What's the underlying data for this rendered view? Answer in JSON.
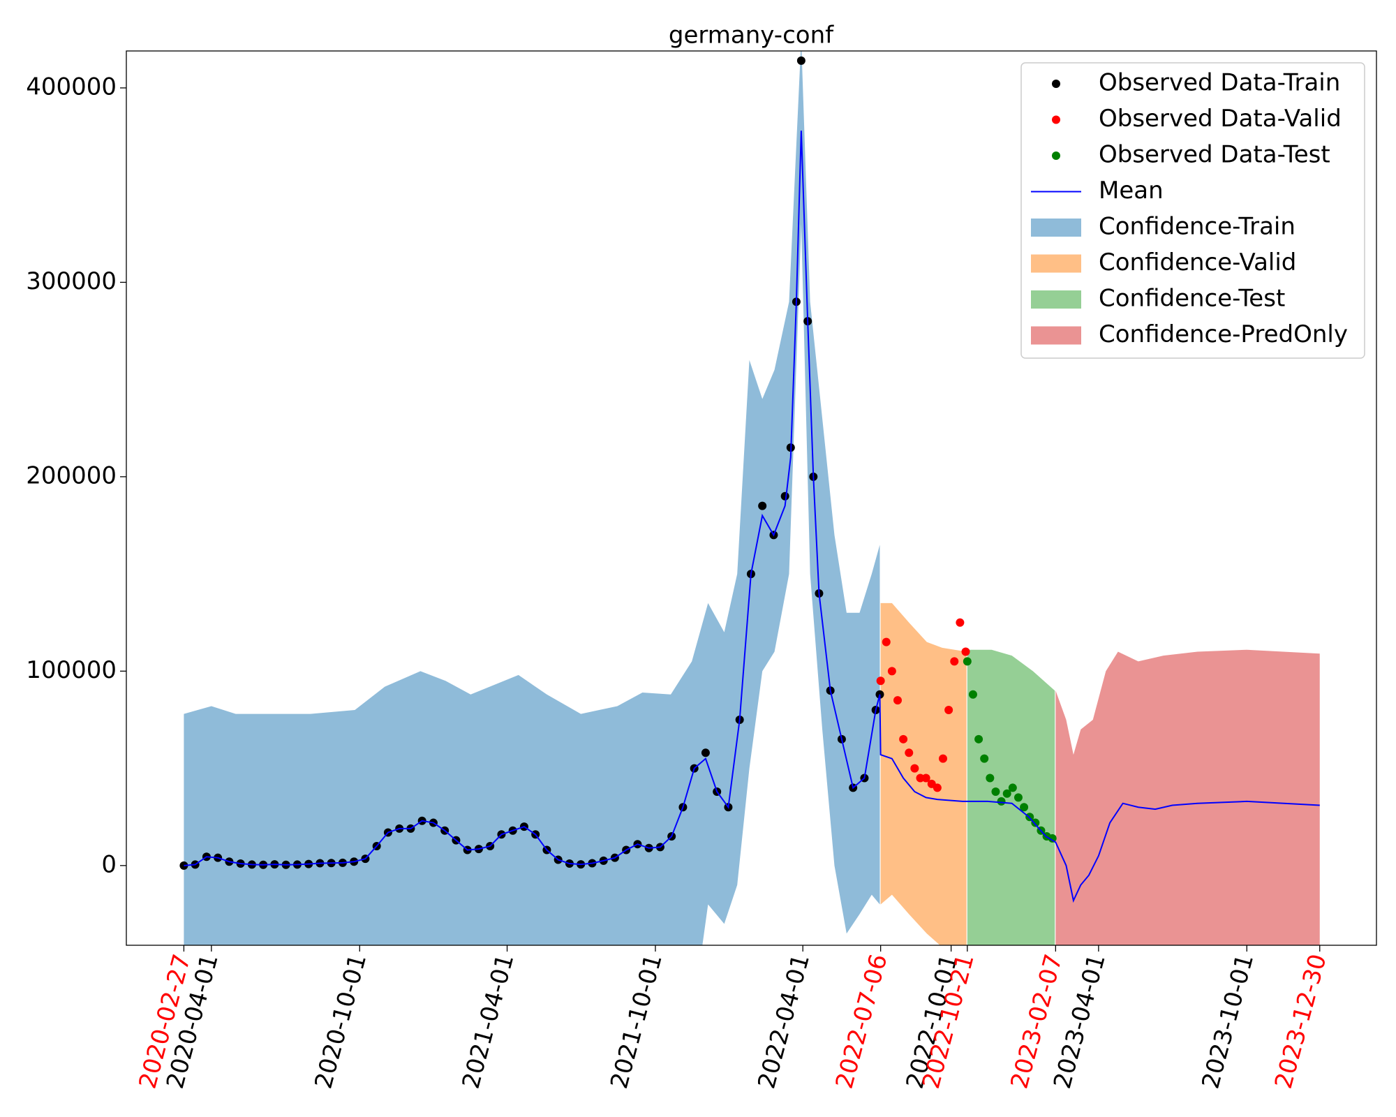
{
  "chart_data": {
    "type": "line",
    "title": "germany-conf",
    "xlim": [
      "2019-12-18",
      "2024-03-09"
    ],
    "xticks": [
      "2020-02-27",
      "2020-04-01",
      "2020-10-01",
      "2021-04-01",
      "2021-10-01",
      "2022-04-01",
      "2022-07-06",
      "2022-10-01",
      "2022-10-21",
      "2023-02-07",
      "2023-04-01",
      "2023-10-01",
      "2023-12-30"
    ],
    "xtick_colors": [
      "red",
      "black",
      "black",
      "black",
      "black",
      "black",
      "red",
      "black",
      "red",
      "red",
      "black",
      "black",
      "red"
    ],
    "ylim": [
      -41000,
      419000
    ],
    "yticks": [
      0,
      100000,
      200000,
      300000,
      400000
    ],
    "legend": "upper right",
    "series": [
      {
        "name": "Observed Data-Train",
        "kind": "scatter",
        "color": "black",
        "x": [
          "2020-02-27",
          "2020-03-12",
          "2020-03-26",
          "2020-04-09",
          "2020-04-23",
          "2020-05-07",
          "2020-05-21",
          "2020-06-04",
          "2020-06-18",
          "2020-07-02",
          "2020-07-16",
          "2020-07-30",
          "2020-08-13",
          "2020-08-27",
          "2020-09-10",
          "2020-09-24",
          "2020-10-08",
          "2020-10-22",
          "2020-11-05",
          "2020-11-19",
          "2020-12-03",
          "2020-12-17",
          "2020-12-31",
          "2021-01-14",
          "2021-01-28",
          "2021-02-11",
          "2021-02-25",
          "2021-03-11",
          "2021-03-25",
          "2021-04-08",
          "2021-04-22",
          "2021-05-06",
          "2021-05-20",
          "2021-06-03",
          "2021-06-17",
          "2021-07-01",
          "2021-07-15",
          "2021-07-29",
          "2021-08-12",
          "2021-08-26",
          "2021-09-09",
          "2021-09-23",
          "2021-10-07",
          "2021-10-21",
          "2021-11-04",
          "2021-11-18",
          "2021-12-02",
          "2021-12-16",
          "2021-12-30",
          "2022-01-13",
          "2022-01-27",
          "2022-02-10",
          "2022-02-24",
          "2022-03-10",
          "2022-03-17",
          "2022-03-24",
          "2022-03-30",
          "2022-04-07",
          "2022-04-14",
          "2022-04-21",
          "2022-05-05",
          "2022-05-19",
          "2022-06-02",
          "2022-06-16",
          "2022-06-30",
          "2022-07-05"
        ],
        "values": [
          0,
          500,
          4500,
          4000,
          2000,
          1000,
          500,
          400,
          600,
          400,
          500,
          800,
          1200,
          1300,
          1400,
          2000,
          3500,
          10000,
          17000,
          19000,
          19000,
          23000,
          22000,
          18000,
          13000,
          8000,
          8500,
          10000,
          16000,
          18000,
          20000,
          16000,
          8000,
          3000,
          1000,
          600,
          1200,
          2500,
          4000,
          8000,
          11000,
          9000,
          9500,
          15000,
          30000,
          50000,
          58000,
          38000,
          30000,
          75000,
          150000,
          185000,
          170000,
          190000,
          215000,
          290000,
          414000,
          280000,
          200000,
          140000,
          90000,
          65000,
          40000,
          45000,
          80000,
          88000
        ]
      },
      {
        "name": "Observed Data-Valid",
        "kind": "scatter",
        "color": "red",
        "x": [
          "2022-07-06",
          "2022-07-13",
          "2022-07-20",
          "2022-07-27",
          "2022-08-03",
          "2022-08-10",
          "2022-08-17",
          "2022-08-24",
          "2022-08-31",
          "2022-09-07",
          "2022-09-14",
          "2022-09-21",
          "2022-09-28",
          "2022-10-05",
          "2022-10-12",
          "2022-10-19"
        ],
        "values": [
          95000,
          115000,
          100000,
          85000,
          65000,
          58000,
          50000,
          45000,
          45000,
          42000,
          40000,
          55000,
          80000,
          105000,
          125000,
          110000
        ]
      },
      {
        "name": "Observed Data-Test",
        "kind": "scatter",
        "color": "green",
        "x": [
          "2022-10-21",
          "2022-10-28",
          "2022-11-04",
          "2022-11-11",
          "2022-11-18",
          "2022-11-25",
          "2022-12-02",
          "2022-12-09",
          "2022-12-16",
          "2022-12-23",
          "2022-12-30",
          "2023-01-06",
          "2023-01-13",
          "2023-01-20",
          "2023-01-27",
          "2023-02-03"
        ],
        "values": [
          105000,
          88000,
          65000,
          55000,
          45000,
          38000,
          33000,
          37000,
          40000,
          35000,
          30000,
          25000,
          22000,
          18000,
          15000,
          14000
        ]
      },
      {
        "name": "Mean",
        "kind": "line",
        "color": "blue",
        "x": [
          "2020-02-27",
          "2020-03-12",
          "2020-03-26",
          "2020-04-09",
          "2020-04-23",
          "2020-05-07",
          "2020-05-21",
          "2020-06-04",
          "2020-06-18",
          "2020-07-02",
          "2020-07-16",
          "2020-07-30",
          "2020-08-13",
          "2020-08-27",
          "2020-09-10",
          "2020-09-24",
          "2020-10-08",
          "2020-10-22",
          "2020-11-05",
          "2020-11-19",
          "2020-12-03",
          "2020-12-17",
          "2020-12-31",
          "2021-01-14",
          "2021-01-28",
          "2021-02-11",
          "2021-02-25",
          "2021-03-11",
          "2021-03-25",
          "2021-04-08",
          "2021-04-22",
          "2021-05-06",
          "2021-05-20",
          "2021-06-03",
          "2021-06-17",
          "2021-07-01",
          "2021-07-15",
          "2021-07-29",
          "2021-08-12",
          "2021-08-26",
          "2021-09-09",
          "2021-09-23",
          "2021-10-07",
          "2021-10-21",
          "2021-11-04",
          "2021-11-18",
          "2021-12-02",
          "2021-12-16",
          "2021-12-30",
          "2022-01-13",
          "2022-01-27",
          "2022-02-10",
          "2022-02-24",
          "2022-03-10",
          "2022-03-17",
          "2022-03-24",
          "2022-03-30",
          "2022-04-07",
          "2022-04-14",
          "2022-04-21",
          "2022-05-05",
          "2022-05-19",
          "2022-06-02",
          "2022-06-16",
          "2022-06-30",
          "2022-07-05",
          "2022-07-06",
          "2022-07-20",
          "2022-08-03",
          "2022-08-17",
          "2022-08-31",
          "2022-09-14",
          "2022-10-15",
          "2022-11-15",
          "2022-12-15",
          "2023-01-05",
          "2023-01-26",
          "2023-02-07",
          "2023-02-20",
          "2023-03-01",
          "2023-03-10",
          "2023-03-20",
          "2023-04-01",
          "2023-04-15",
          "2023-05-01",
          "2023-05-20",
          "2023-06-10",
          "2023-07-01",
          "2023-08-01",
          "2023-10-01",
          "2023-12-30"
        ],
        "values": [
          0,
          500,
          4500,
          4000,
          2000,
          1000,
          500,
          400,
          600,
          400,
          500,
          800,
          1200,
          1300,
          1400,
          2000,
          3500,
          10000,
          17000,
          19000,
          19000,
          23000,
          22000,
          18000,
          13000,
          8000,
          8500,
          10000,
          16000,
          18000,
          20000,
          16000,
          8000,
          3000,
          1000,
          600,
          1200,
          2500,
          4000,
          8000,
          11000,
          9000,
          9500,
          15000,
          30000,
          50000,
          55000,
          38000,
          30000,
          75000,
          150000,
          180000,
          170000,
          185000,
          210000,
          290000,
          378000,
          280000,
          200000,
          140000,
          90000,
          65000,
          40000,
          45000,
          80000,
          88000,
          57000,
          55000,
          45000,
          38000,
          35000,
          34000,
          33000,
          33000,
          32000,
          25000,
          15000,
          12000,
          0,
          -18000,
          -10000,
          -5000,
          5000,
          22000,
          32000,
          30000,
          29000,
          31000,
          32000,
          33000,
          31000
        ]
      },
      {
        "name": "Confidence-Train",
        "kind": "band",
        "color": "#8fbbd9",
        "x": [
          "2020-02-27",
          "2020-04-01",
          "2020-05-01",
          "2020-08-01",
          "2020-09-25",
          "2020-11-01",
          "2020-12-15",
          "2021-01-15",
          "2021-02-15",
          "2021-04-15",
          "2021-05-20",
          "2021-07-01",
          "2021-08-15",
          "2021-09-15",
          "2021-10-20",
          "2021-11-15",
          "2021-12-05",
          "2021-12-25",
          "2022-01-10",
          "2022-01-25",
          "2022-02-10",
          "2022-02-25",
          "2022-03-15",
          "2022-03-30",
          "2022-04-10",
          "2022-04-25",
          "2022-05-10",
          "2022-05-25",
          "2022-06-10",
          "2022-06-25",
          "2022-07-05"
        ],
        "upper": [
          78000,
          82000,
          78000,
          78000,
          80000,
          92000,
          100000,
          95000,
          88000,
          98000,
          88000,
          78000,
          82000,
          89000,
          88000,
          105000,
          135000,
          120000,
          150000,
          260000,
          240000,
          255000,
          290000,
          425000,
          290000,
          230000,
          170000,
          130000,
          130000,
          150000,
          165000
        ],
        "lower": [
          -80000,
          -80000,
          -80000,
          -80000,
          -80000,
          -80000,
          -80000,
          -80000,
          -80000,
          -80000,
          -80000,
          -80000,
          -80000,
          -80000,
          -80000,
          -80000,
          -20000,
          -30000,
          -10000,
          50000,
          100000,
          110000,
          150000,
          330000,
          150000,
          70000,
          0,
          -35000,
          -25000,
          -15000,
          -20000
        ]
      },
      {
        "name": "Confidence-Valid",
        "kind": "band",
        "color": "#ffbf86",
        "x": [
          "2022-07-06",
          "2022-07-20",
          "2022-08-10",
          "2022-09-01",
          "2022-09-20",
          "2022-10-20"
        ],
        "upper": [
          135000,
          135000,
          125000,
          115000,
          112000,
          110000
        ],
        "lower": [
          -20000,
          -15000,
          -25000,
          -35000,
          -42000,
          -45000
        ]
      },
      {
        "name": "Confidence-Test",
        "kind": "band",
        "color": "#95cf95",
        "x": [
          "2022-10-21",
          "2022-11-20",
          "2022-12-15",
          "2023-01-10",
          "2023-02-06"
        ],
        "upper": [
          111000,
          111000,
          108000,
          100000,
          90000
        ],
        "lower": [
          -100000,
          -100000,
          -100000,
          -100000,
          -100000
        ]
      },
      {
        "name": "Confidence-PredOnly",
        "kind": "band",
        "color": "#ea9393",
        "x": [
          "2023-02-07",
          "2023-02-20",
          "2023-03-01",
          "2023-03-10",
          "2023-03-25",
          "2023-04-10",
          "2023-04-25",
          "2023-05-20",
          "2023-06-20",
          "2023-08-01",
          "2023-10-01",
          "2023-12-30"
        ],
        "upper": [
          90000,
          75000,
          57000,
          70000,
          75000,
          100000,
          110000,
          105000,
          108000,
          110000,
          111000,
          109000
        ],
        "lower": [
          -100000,
          -100000,
          -100000,
          -100000,
          -100000,
          -100000,
          -100000,
          -100000,
          -100000,
          -100000,
          -100000,
          -100000
        ]
      }
    ]
  }
}
